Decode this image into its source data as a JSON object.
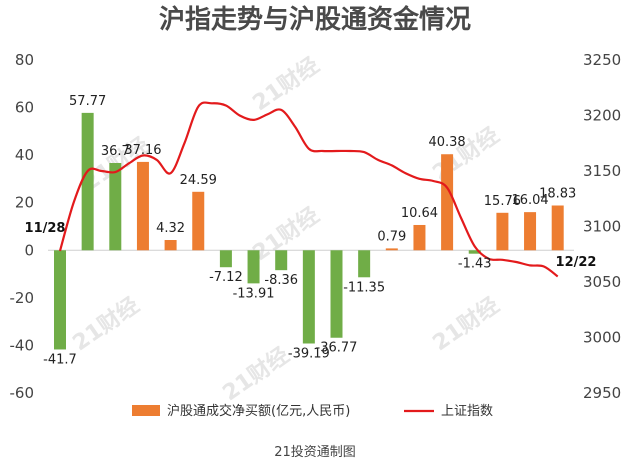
{
  "chart_data": {
    "type": "bar",
    "title": "沪指走势与沪股通资金情况",
    "source": "21投资通制图",
    "watermark": "21财经",
    "start_label": "11/28",
    "end_label": "12/22",
    "y_left": {
      "min": -60,
      "max": 80,
      "ticks": [
        80,
        60,
        40,
        20,
        0,
        -20,
        -40,
        -60
      ]
    },
    "y_right": {
      "min": 2950,
      "max": 3250,
      "ticks": [
        3250,
        3200,
        3150,
        3100,
        3050,
        3000,
        2950
      ]
    },
    "series": [
      {
        "name": "沪股通成交净买额(亿元,人民币)",
        "kind": "bar",
        "color_positive": "#ed7d31",
        "color_negative": "#70ad47",
        "values": [
          -41.7,
          57.77,
          36.7,
          37.16,
          4.32,
          24.59,
          -7.12,
          -13.91,
          -8.36,
          -39.19,
          -36.77,
          -11.35,
          0.79,
          10.64,
          40.38,
          -1.43,
          15.76,
          16.04,
          18.83
        ],
        "labels": [
          "-41.7",
          "57.77",
          "36.7",
          "37.16",
          "4.32",
          "24.59",
          "-7.12",
          "-13.91",
          "-8.36",
          "-39.19",
          "-36.77",
          "-11.35",
          "0.79",
          "10.64",
          "40.38",
          "-1.43",
          "15.76",
          "16.04",
          "18.83"
        ],
        "bar_colors": [
          "#70ad47",
          "#70ad47",
          "#70ad47",
          "#ed7d31",
          "#ed7d31",
          "#ed7d31",
          "#70ad47",
          "#70ad47",
          "#70ad47",
          "#70ad47",
          "#70ad47",
          "#70ad47",
          "#ed7d31",
          "#ed7d31",
          "#ed7d31",
          "#70ad47",
          "#ed7d31",
          "#ed7d31",
          "#ed7d31"
        ]
      },
      {
        "name": "上证指数",
        "kind": "line",
        "color": "#e31a1c",
        "axis": "right",
        "x": [
          0,
          0.5,
          1,
          1.5,
          2,
          2.5,
          3,
          3.5,
          4,
          4.5,
          5,
          5.5,
          6,
          6.5,
          7,
          7.5,
          8,
          8.5,
          9,
          9.5,
          10,
          10.5,
          11,
          11.5,
          12,
          12.5,
          13,
          13.5,
          14,
          14.5,
          15,
          15.5,
          16,
          16.5,
          17,
          17.5,
          18
        ],
        "values": [
          3078,
          3122,
          3150,
          3150,
          3149,
          3157,
          3164,
          3160,
          3148,
          3175,
          3208,
          3211,
          3209,
          3200,
          3196,
          3201,
          3205,
          3190,
          3170,
          3168,
          3168,
          3168,
          3167,
          3160,
          3155,
          3148,
          3143,
          3141,
          3135,
          3108,
          3082,
          3071,
          3070,
          3068,
          3065,
          3064,
          3055
        ]
      }
    ]
  }
}
